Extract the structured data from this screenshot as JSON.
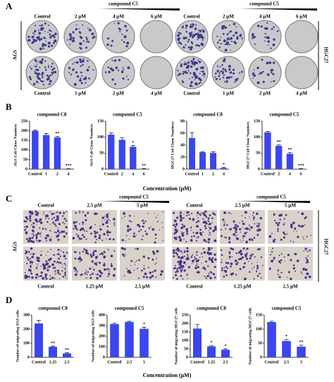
{
  "panels": {
    "a": "A",
    "b": "B",
    "c": "C",
    "d": "D"
  },
  "colony": {
    "header_left": "compound C5",
    "header_right": "compound C5",
    "top_labels": [
      "Control",
      "2 µM",
      "4 µM",
      "6 µM",
      "Control",
      "2 µM",
      "4 µM",
      "6 µM"
    ],
    "bottom_labels": [
      "Control",
      "1 µM",
      "2 µM",
      "4 µM",
      "Control",
      "1 µM",
      "2 µM",
      "4 µM"
    ],
    "row_left": "AGS",
    "row_right": "HGC27"
  },
  "b_xlabel": "Concentration (µM)",
  "migration": {
    "header_left": "compound C5",
    "header_right": "compound C5",
    "top_labels": [
      "Control",
      "2.5 µM",
      "5 µM",
      "Control",
      "2.5 µM",
      "5 µM"
    ],
    "bottom_labels": [
      "Control",
      "1.25 µM",
      "2.5 µM",
      "Control",
      "1.25 µM",
      "2.5 µM"
    ],
    "row_left": "AGS",
    "row_right": "HGC27"
  },
  "d_xlabel": "Concentration (µM)",
  "chart_data": [
    {
      "type": "bar",
      "title": "compound C8",
      "y_label": "AGS Cell Clone Numbers",
      "categories": [
        "Control",
        "1",
        "2",
        "4"
      ],
      "values": [
        200,
        178,
        165,
        2
      ],
      "errors": [
        3,
        8,
        5,
        1
      ],
      "significance": [
        null,
        null,
        "**",
        "***"
      ],
      "color": "#3b46ee",
      "ylim": [
        0,
        250
      ],
      "yticks": [
        0,
        50,
        100,
        150,
        200,
        250
      ]
    },
    {
      "type": "bar",
      "title": "compound C5",
      "y_label": "AGS Cell Clone Numbers",
      "categories": [
        "Control",
        "2",
        "4",
        "6"
      ],
      "values": [
        108,
        92,
        70,
        1
      ],
      "errors": [
        5,
        6,
        4,
        1
      ],
      "significance": [
        null,
        null,
        "*",
        "**"
      ],
      "color": "#3b46ee",
      "ylim": [
        0,
        150
      ],
      "yticks": [
        0,
        50,
        100,
        150
      ]
    },
    {
      "type": "bar",
      "title": "compound C8",
      "y_label": "HGC27 Cell Clone Numbers",
      "categories": [
        "Control",
        "1",
        "2",
        "4"
      ],
      "values": [
        52,
        28,
        27,
        2
      ],
      "errors": [
        9,
        1,
        2,
        1
      ],
      "significance": [
        null,
        null,
        null,
        "*"
      ],
      "color": "#3b46ee",
      "ylim": [
        0,
        80
      ],
      "yticks": [
        0,
        20,
        40,
        60,
        80
      ]
    },
    {
      "type": "bar",
      "title": "compound C5",
      "y_label": "HGC27 Cell Clone Numbers",
      "categories": [
        "Control",
        "2",
        "4",
        "6"
      ],
      "values": [
        115,
        73,
        48,
        1
      ],
      "errors": [
        3,
        3,
        4,
        1
      ],
      "significance": [
        null,
        "**",
        "**",
        "***"
      ],
      "color": "#3b46ee",
      "ylim": [
        0,
        150
      ],
      "yticks": [
        0,
        50,
        100,
        150
      ]
    },
    {
      "type": "bar",
      "title": "compound C8",
      "y_label": "Number of migrating AGS cells",
      "categories": [
        "Control",
        "1.25",
        "2.5"
      ],
      "values": [
        240,
        75,
        28
      ],
      "errors": [
        22,
        5,
        4
      ],
      "significance": [
        null,
        "**",
        "**"
      ],
      "color": "#3b46ee",
      "ylim": [
        0,
        300
      ],
      "yticks": [
        0,
        100,
        200,
        300
      ]
    },
    {
      "type": "bar",
      "title": "compound C5",
      "y_label": "Number of migrating AGS cells",
      "categories": [
        "Control",
        "2.5",
        "5"
      ],
      "values": [
        315,
        335,
        270
      ],
      "errors": [
        8,
        6,
        15
      ],
      "significance": [
        null,
        null,
        "*"
      ],
      "color": "#3b46ee",
      "ylim": [
        0,
        400
      ],
      "yticks": [
        0,
        100,
        200,
        300,
        400
      ]
    },
    {
      "type": "bar",
      "title": "compound C8",
      "y_label": "Number of migrating HGC27 cells",
      "categories": [
        "Control",
        "1.25",
        "2.5"
      ],
      "values": [
        170,
        65,
        45
      ],
      "errors": [
        25,
        5,
        5
      ],
      "significance": [
        null,
        "*",
        "*"
      ],
      "color": "#3b46ee",
      "ylim": [
        0,
        250
      ],
      "yticks": [
        0,
        50,
        100,
        150,
        200,
        250
      ]
    },
    {
      "type": "bar",
      "title": "compound C5",
      "y_label": "Number of migrating HGC27 cells",
      "categories": [
        "Control",
        "2.5",
        "5"
      ],
      "values": [
        125,
        58,
        38
      ],
      "errors": [
        3,
        5,
        5
      ],
      "significance": [
        null,
        "*",
        "**"
      ],
      "color": "#3b46ee",
      "ylim": [
        0,
        150
      ],
      "yticks": [
        0,
        50,
        100,
        150
      ]
    }
  ]
}
